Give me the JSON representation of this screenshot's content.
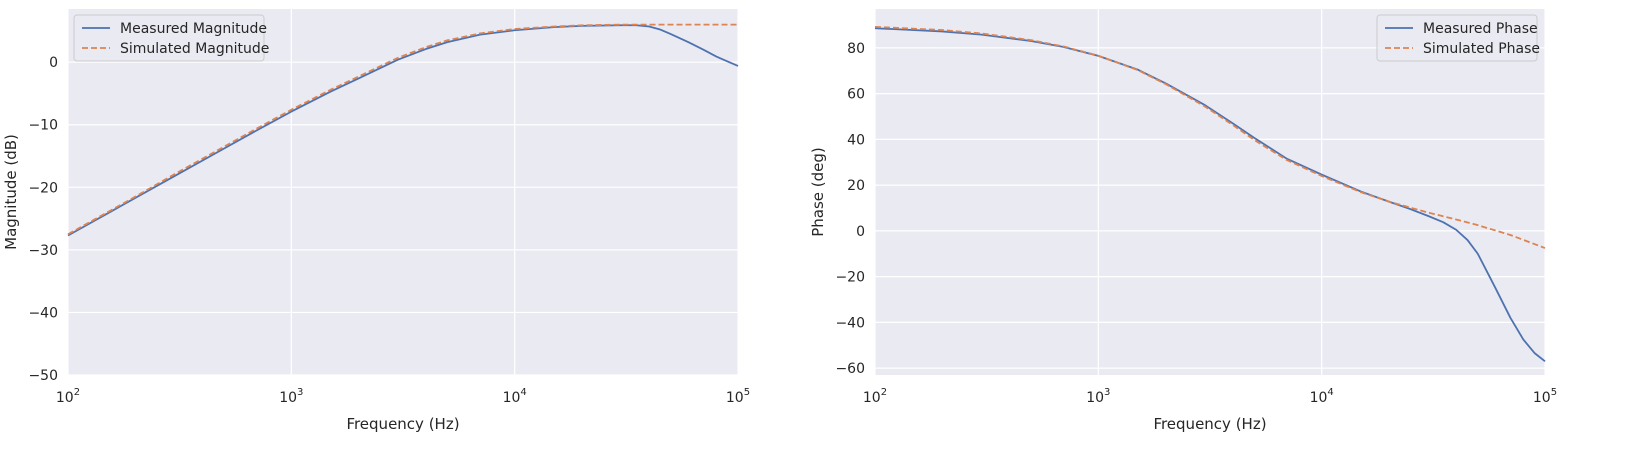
{
  "colors": {
    "background": "#eaeaf2",
    "grid": "#ffffff",
    "measured": "#4c72b0",
    "simulated": "#dd8452"
  },
  "chart_data": [
    {
      "type": "line",
      "xlabel": "Frequency (Hz)",
      "ylabel": "Magnitude (dB)",
      "xscale": "log",
      "xlim": [
        100,
        100000
      ],
      "ylim": [
        -50,
        8.5
      ],
      "xticks": [
        {
          "value": 100,
          "base": "10",
          "exp": "2"
        },
        {
          "value": 1000,
          "base": "10",
          "exp": "3"
        },
        {
          "value": 10000,
          "base": "10",
          "exp": "4"
        },
        {
          "value": 100000,
          "base": "10",
          "exp": "5"
        }
      ],
      "yticks": [
        {
          "value": 0,
          "label": "0"
        },
        {
          "value": -10,
          "label": "−10"
        },
        {
          "value": -20,
          "label": "−20"
        },
        {
          "value": -30,
          "label": "−30"
        },
        {
          "value": -40,
          "label": "−40"
        },
        {
          "value": -50,
          "label": "−50"
        }
      ],
      "grid": true,
      "legend": "upper left",
      "series": [
        {
          "name": "Measured Magnitude",
          "style": "solid",
          "x": [
            100,
            150,
            200,
            300,
            500,
            700,
            1000,
            1500,
            2000,
            3000,
            4000,
            5000,
            7000,
            10000,
            15000,
            20000,
            30000,
            35000,
            40000,
            45000,
            50000,
            60000,
            70000,
            80000,
            90000,
            100000
          ],
          "y": [
            -27.7,
            -24.2,
            -21.7,
            -18.2,
            -13.8,
            -10.9,
            -7.9,
            -4.7,
            -2.6,
            0.4,
            2.1,
            3.2,
            4.4,
            5.1,
            5.6,
            5.8,
            5.9,
            5.9,
            5.7,
            5.2,
            4.5,
            3.2,
            2.0,
            0.9,
            0.1,
            -0.6
          ]
        },
        {
          "name": "Simulated Magnitude",
          "style": "dashed",
          "x": [
            100,
            150,
            200,
            300,
            500,
            700,
            1000,
            1500,
            2000,
            3000,
            4000,
            5000,
            7000,
            10000,
            15000,
            20000,
            30000,
            40000,
            50000,
            70000,
            100000
          ],
          "y": [
            -27.5,
            -24.0,
            -21.5,
            -17.9,
            -13.5,
            -10.6,
            -7.6,
            -4.4,
            -2.3,
            0.7,
            2.4,
            3.5,
            4.6,
            5.3,
            5.7,
            5.9,
            6.0,
            6.0,
            6.0,
            6.0,
            6.0
          ]
        }
      ]
    },
    {
      "type": "line",
      "xlabel": "Frequency (Hz)",
      "ylabel": "Phase (deg)",
      "xscale": "log",
      "xlim": [
        100,
        100000
      ],
      "ylim": [
        -63,
        97
      ],
      "xticks": [
        {
          "value": 100,
          "base": "10",
          "exp": "2"
        },
        {
          "value": 1000,
          "base": "10",
          "exp": "3"
        },
        {
          "value": 10000,
          "base": "10",
          "exp": "4"
        },
        {
          "value": 100000,
          "base": "10",
          "exp": "5"
        }
      ],
      "yticks": [
        {
          "value": 80,
          "label": "80"
        },
        {
          "value": 60,
          "label": "60"
        },
        {
          "value": 40,
          "label": "40"
        },
        {
          "value": 20,
          "label": "20"
        },
        {
          "value": 0,
          "label": "0"
        },
        {
          "value": -20,
          "label": "−20"
        },
        {
          "value": -40,
          "label": "−40"
        },
        {
          "value": -60,
          "label": "−60"
        }
      ],
      "grid": true,
      "legend": "upper right",
      "series": [
        {
          "name": "Measured Phase",
          "style": "solid",
          "x": [
            100,
            200,
            300,
            500,
            700,
            1000,
            1500,
            2000,
            3000,
            4000,
            5000,
            7000,
            10000,
            15000,
            20000,
            25000,
            30000,
            35000,
            40000,
            45000,
            50000,
            60000,
            70000,
            80000,
            90000,
            100000
          ],
          "y": [
            88.6,
            87.2,
            85.8,
            83.0,
            80.4,
            76.5,
            70.5,
            64.5,
            55.0,
            47.0,
            40.6,
            31.5,
            24.6,
            17.2,
            12.8,
            9.5,
            6.5,
            3.8,
            0.5,
            -4.0,
            -10.0,
            -25.0,
            -38.0,
            -47.5,
            -53.5,
            -57.0
          ]
        },
        {
          "name": "Simulated Phase",
          "style": "dashed",
          "x": [
            100,
            200,
            300,
            500,
            700,
            1000,
            1500,
            2000,
            3000,
            4000,
            5000,
            7000,
            10000,
            15000,
            20000,
            30000,
            40000,
            50000,
            70000,
            100000
          ],
          "y": [
            89.2,
            87.8,
            86.3,
            83.4,
            80.6,
            76.6,
            70.3,
            64.2,
            54.4,
            46.3,
            39.7,
            30.9,
            24.0,
            16.9,
            12.8,
            8.0,
            5.0,
            2.5,
            -1.8,
            -7.5
          ]
        }
      ]
    }
  ]
}
